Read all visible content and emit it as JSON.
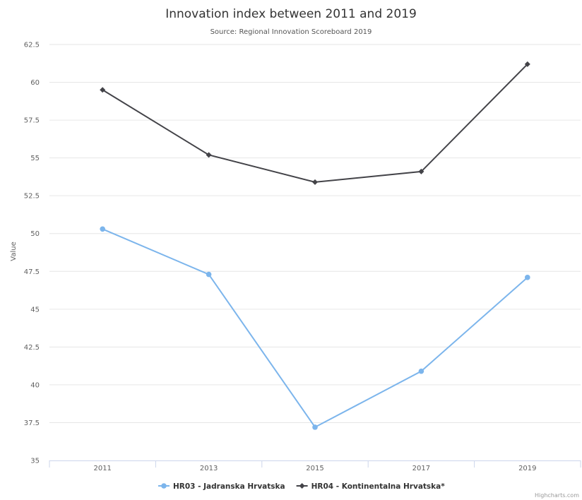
{
  "chart_data": {
    "type": "line",
    "title": "Innovation index between 2011 and 2019",
    "subtitle": "Source: Regional Innovation Scoreboard 2019",
    "xlabel": "",
    "ylabel": "Value",
    "categories": [
      "2011",
      "2013",
      "2015",
      "2017",
      "2019"
    ],
    "ylim": [
      35,
      62.5
    ],
    "yticks": [
      35,
      37.5,
      40,
      42.5,
      45,
      47.5,
      50,
      52.5,
      55,
      57.5,
      60,
      62.5
    ],
    "ytick_labels": [
      "35",
      "37.5",
      "40",
      "42.5",
      "45",
      "47.5",
      "50",
      "52.5",
      "55",
      "57.5",
      "60",
      "62.5"
    ],
    "grid": true,
    "legend_position": "bottom-center",
    "series": [
      {
        "name": "HR03 - Jadranska Hrvatska",
        "values": [
          50.3,
          47.3,
          37.2,
          40.9,
          47.1
        ],
        "color": "#7cb5ec",
        "marker": "circle"
      },
      {
        "name": "HR04 - Kontinentalna Hrvatska*",
        "values": [
          59.5,
          55.2,
          53.4,
          54.1,
          61.2
        ],
        "color": "#434348",
        "marker": "diamond"
      }
    ],
    "credits": "Highcharts.com"
  }
}
